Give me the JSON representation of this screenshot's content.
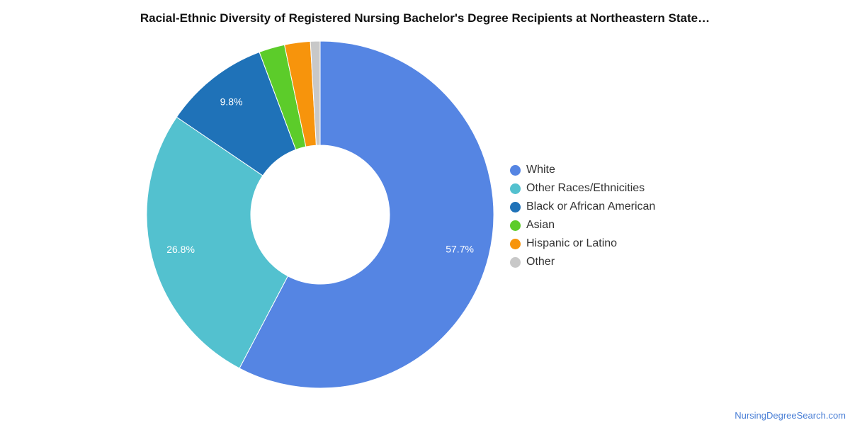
{
  "title": "Racial-Ethnic Diversity of Registered Nursing Bachelor's Degree Recipients at Northeastern State…",
  "source": "NursingDegreeSearch.com",
  "chart_data": {
    "type": "pie",
    "donut": true,
    "title": "Racial-Ethnic Diversity of Registered Nursing Bachelor's Degree Recipients at Northeastern State…",
    "legend_position": "right",
    "slices": [
      {
        "name": "White",
        "value": 57.7,
        "label": "57.7%",
        "color": "#5585e3"
      },
      {
        "name": "Other Races/Ethnicities",
        "value": 26.8,
        "label": "26.8%",
        "color": "#53c1cf"
      },
      {
        "name": "Black or African American",
        "value": 9.8,
        "label": "9.8%",
        "color": "#1f72b8"
      },
      {
        "name": "Asian",
        "value": 2.4,
        "label": "",
        "color": "#5ccc2a"
      },
      {
        "name": "Hispanic or Latino",
        "value": 2.4,
        "label": "",
        "color": "#f7940c"
      },
      {
        "name": "Other",
        "value": 0.9,
        "label": "",
        "color": "#c8c8c8"
      }
    ]
  }
}
